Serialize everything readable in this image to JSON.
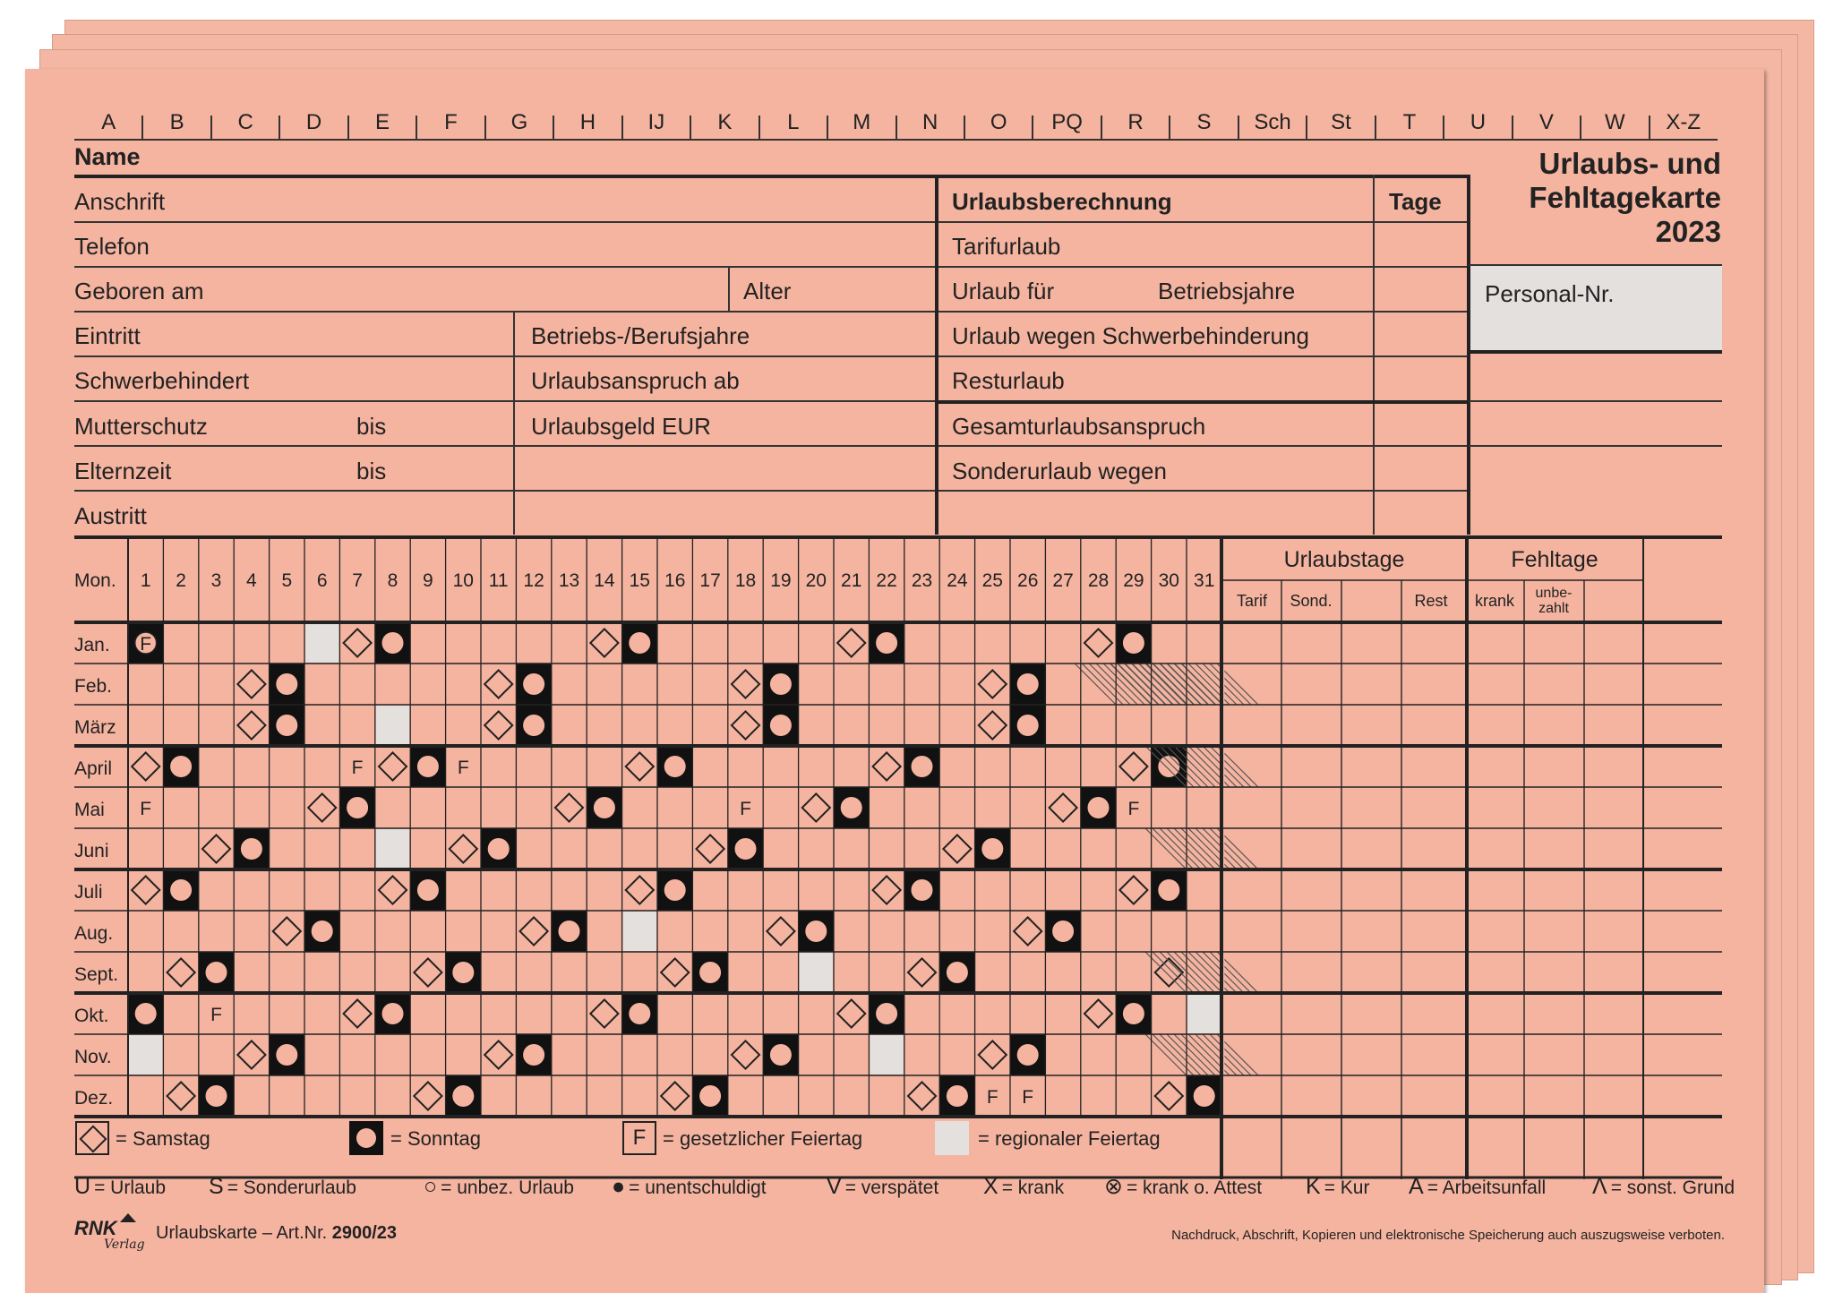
{
  "register": [
    "A",
    "B",
    "C",
    "D",
    "E",
    "F",
    "G",
    "H",
    "IJ",
    "K",
    "L",
    "M",
    "N",
    "O",
    "PQ",
    "R",
    "S",
    "Sch",
    "St",
    "T",
    "U",
    "V",
    "W",
    "X-Z"
  ],
  "fields": {
    "name": "Name",
    "anschrift": "Anschrift",
    "telefon": "Telefon",
    "geboren": "Geboren am",
    "alter": "Alter",
    "eintritt": "Eintritt",
    "jahre": "Betriebs-/Berufsjahre",
    "schwer": "Schwerbehindert",
    "anspruch_ab": "Urlaubsanspruch ab",
    "mutter": "Mutterschutz",
    "bis1": "bis",
    "geld": "Urlaubsgeld EUR",
    "eltern": "Elternzeit",
    "bis2": "bis",
    "austritt": "Austritt"
  },
  "calc": {
    "title": "Urlaubsberechnung",
    "tage": "Tage",
    "rows": [
      "Tarifurlaub",
      "Urlaub für",
      "Urlaub wegen Schwerbehinderung",
      "Resturlaub",
      "Gesamturlaubsanspruch",
      "Sonderurlaub wegen"
    ],
    "betriebsjahre": "Betriebsjahre"
  },
  "card_title": {
    "line1": "Urlaubs- und",
    "line2": "Fehltagekarte",
    "year": "2023"
  },
  "personal_nr": "Personal-Nr.",
  "calendar": {
    "mon_label": "Mon.",
    "days": [
      "1",
      "2",
      "3",
      "4",
      "5",
      "6",
      "7",
      "8",
      "9",
      "10",
      "11",
      "12",
      "13",
      "14",
      "15",
      "16",
      "17",
      "18",
      "19",
      "20",
      "21",
      "22",
      "23",
      "24",
      "25",
      "26",
      "27",
      "28",
      "29",
      "30",
      "31"
    ],
    "months": [
      "Jan.",
      "Feb.",
      "März",
      "April",
      "Mai",
      "Juni",
      "Juli",
      "Aug.",
      "Sept.",
      "Okt.",
      "Nov.",
      "Dez."
    ],
    "first_weekday": [
      7,
      3,
      3,
      6,
      1,
      4,
      6,
      2,
      5,
      7,
      3,
      5
    ],
    "month_lengths": [
      31,
      28,
      31,
      30,
      31,
      30,
      31,
      31,
      30,
      31,
      30,
      31
    ],
    "holidays": [
      {
        "m": 1,
        "d": 1,
        "k": "F"
      },
      {
        "m": 1,
        "d": 6,
        "k": "R"
      },
      {
        "m": 3,
        "d": 8,
        "k": "R"
      },
      {
        "m": 4,
        "d": 7,
        "k": "F"
      },
      {
        "m": 4,
        "d": 9,
        "k": "O"
      },
      {
        "m": 4,
        "d": 10,
        "k": "F"
      },
      {
        "m": 5,
        "d": 1,
        "k": "F"
      },
      {
        "m": 5,
        "d": 18,
        "k": "F"
      },
      {
        "m": 5,
        "d": 28,
        "k": "O"
      },
      {
        "m": 5,
        "d": 29,
        "k": "F"
      },
      {
        "m": 6,
        "d": 8,
        "k": "R"
      },
      {
        "m": 8,
        "d": 15,
        "k": "R"
      },
      {
        "m": 9,
        "d": 20,
        "k": "R"
      },
      {
        "m": 10,
        "d": 3,
        "k": "F"
      },
      {
        "m": 10,
        "d": 31,
        "k": "R"
      },
      {
        "m": 11,
        "d": 1,
        "k": "R"
      },
      {
        "m": 11,
        "d": 22,
        "k": "R"
      },
      {
        "m": 12,
        "d": 25,
        "k": "F"
      },
      {
        "m": 12,
        "d": 26,
        "k": "F"
      }
    ]
  },
  "urlaubstage": {
    "title": "Urlaubstage",
    "cols": [
      "Tarif",
      "Sond.",
      "",
      "Rest"
    ]
  },
  "fehltage": {
    "title": "Fehltage",
    "cols": [
      "krank",
      "unbe-",
      "zahlt",
      ""
    ]
  },
  "legend": {
    "sa": "= Samstag",
    "so": "= Sonntag",
    "f_letter": "F",
    "f": "= gesetzlicher Feiertag",
    "reg": "= regionaler Feiertag"
  },
  "codes": [
    {
      "k": "U",
      "t": "= Urlaub"
    },
    {
      "k": "S",
      "t": "= Sonderurlaub"
    },
    {
      "k": "○",
      "t": "= unbez. Urlaub"
    },
    {
      "k": "●",
      "t": "= unentschuldigt"
    },
    {
      "k": "V",
      "t": "= verspätet"
    },
    {
      "k": "X",
      "t": "= krank"
    },
    {
      "k": "⊗",
      "t": "= krank o. Attest"
    },
    {
      "k": "K",
      "t": "= Kur"
    },
    {
      "k": "A",
      "t": "= Arbeitsunfall"
    },
    {
      "k": "Λ",
      "t": "= sonst. Grund"
    }
  ],
  "footer": {
    "brand": "RNK",
    "brand_sub": "Verlag",
    "product": "Urlaubskarte – Art.Nr.",
    "artnr": "2900/23",
    "notice": "Nachdruck, Abschrift, Kopieren und elektronische Speicherung auch auszugsweise verboten."
  },
  "colors": {
    "card": "#f5b4a0",
    "regional": "#e4e0de",
    "ink": "#222222"
  }
}
